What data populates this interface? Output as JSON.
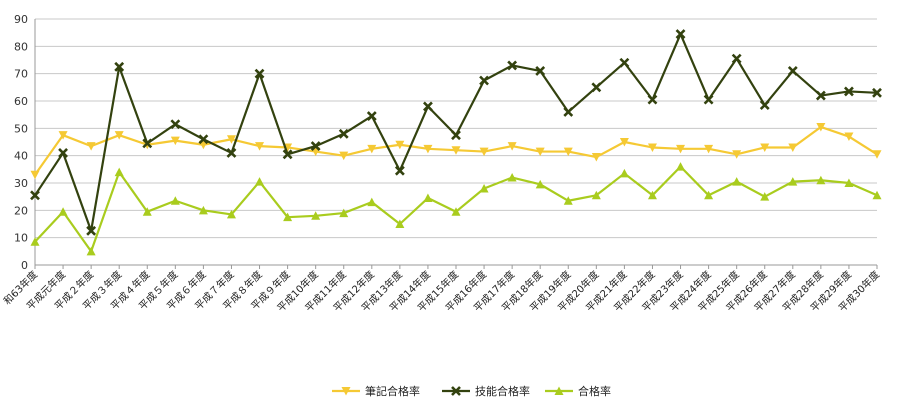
{
  "chart_data": {
    "type": "line",
    "title": "",
    "xlabel": "",
    "ylabel": "",
    "ylim": [
      0,
      90
    ],
    "yticks": [
      0,
      10,
      20,
      30,
      40,
      50,
      60,
      70,
      80,
      90
    ],
    "grid": "horizontal",
    "legend_position": "bottom",
    "categories": [
      "和63年度",
      "平成元年度",
      "平成２年度",
      "平成３年度",
      "平成４年度",
      "平成５年度",
      "平成６年度",
      "平成７年度",
      "平成８年度",
      "平成９年度",
      "平成10年度",
      "平成11年度",
      "平成12年度",
      "平成13年度",
      "平成14年度",
      "平成15年度",
      "平成16年度",
      "平成17年度",
      "平成18年度",
      "平成19年度",
      "平成20年度",
      "平成21年度",
      "平成22年度",
      "平成23年度",
      "平成24年度",
      "平成25年度",
      "平成26年度",
      "平成27年度",
      "平成28年度",
      "平成29年度",
      "平成30年度"
    ],
    "series": [
      {
        "name": "筆記合格率",
        "color": "#f5c934",
        "marker": "triangle-down",
        "values": [
          33,
          47.5,
          43.5,
          47.5,
          44,
          45.5,
          44,
          46,
          43.5,
          43,
          41.5,
          40,
          42.5,
          44,
          42.5,
          42,
          41.5,
          43.5,
          41.5,
          41.5,
          39.5,
          45,
          43,
          42.5,
          42.5,
          40.5,
          43,
          43,
          50.5,
          47,
          40.5
        ]
      },
      {
        "name": "技能合格率",
        "color": "#33420f",
        "marker": "x",
        "values": [
          25.5,
          41,
          12.5,
          72.5,
          44.5,
          51.5,
          46,
          41,
          70,
          40.5,
          43.5,
          48,
          54.5,
          34.5,
          58,
          47.5,
          67.5,
          73,
          71,
          56,
          65,
          74,
          60.5,
          84.5,
          60.5,
          75.5,
          58.5,
          71,
          62,
          63.5,
          63
        ]
      },
      {
        "name": "合格率",
        "color": "#a9cc1e",
        "marker": "triangle-up",
        "values": [
          8.5,
          19.5,
          5,
          34,
          19.5,
          23.5,
          20,
          18.5,
          30.5,
          17.5,
          18,
          19,
          23,
          15,
          24.5,
          19.5,
          28,
          32,
          29.5,
          23.5,
          25.5,
          33.5,
          25.5,
          36,
          25.5,
          30.5,
          25,
          30.5,
          31,
          30,
          25.5
        ]
      }
    ]
  }
}
